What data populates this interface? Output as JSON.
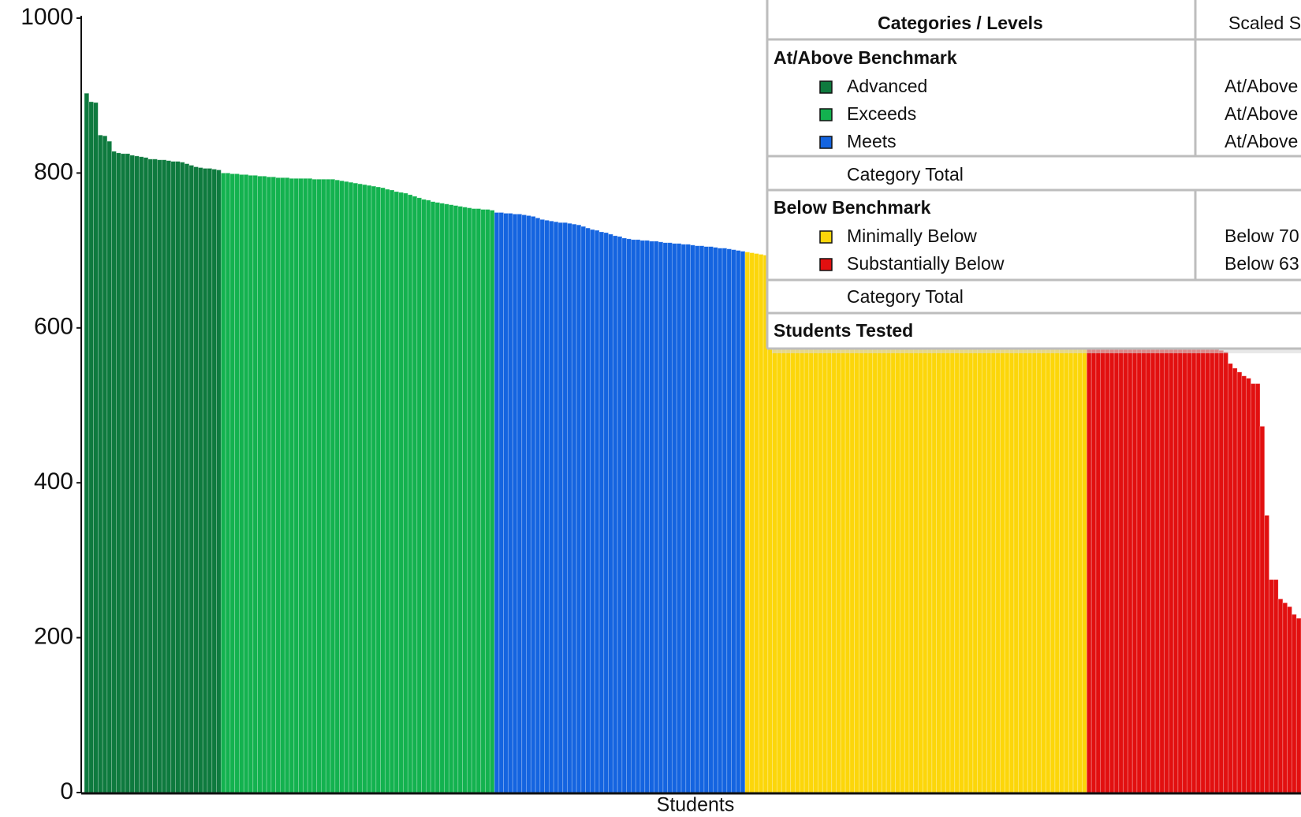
{
  "chart_data": {
    "type": "bar",
    "xlabel": "Students",
    "ylim": [
      0,
      1000
    ],
    "yticks": [
      0,
      200,
      400,
      600,
      800,
      1000
    ],
    "series": [
      {
        "name": "Advanced",
        "color": "#0e7a3e",
        "values": [
          903,
          892,
          891,
          849,
          848,
          841,
          828,
          826,
          825,
          825,
          823,
          822,
          821,
          820,
          818,
          818,
          817,
          817,
          816,
          815,
          815,
          814,
          812,
          810,
          808,
          807,
          806,
          806,
          805,
          804
        ]
      },
      {
        "name": "Exceeds",
        "color": "#13b24f",
        "values": [
          800,
          800,
          799,
          799,
          798,
          798,
          797,
          797,
          796,
          796,
          795,
          795,
          794,
          794,
          794,
          793,
          793,
          793,
          793,
          793,
          792,
          792,
          792,
          792,
          792,
          791,
          790,
          789,
          788,
          787,
          786,
          785,
          784,
          783,
          782,
          781,
          779,
          778,
          776,
          775,
          774,
          772,
          770,
          768,
          766,
          765,
          763,
          762,
          761,
          760,
          759,
          758,
          757,
          756,
          755,
          754,
          754,
          753,
          753,
          752
        ]
      },
      {
        "name": "Meets",
        "color": "#1464e0",
        "values": [
          749,
          749,
          748,
          748,
          747,
          747,
          746,
          745,
          744,
          742,
          740,
          739,
          738,
          737,
          736,
          736,
          735,
          734,
          733,
          731,
          729,
          727,
          726,
          724,
          723,
          721,
          719,
          718,
          716,
          715,
          714,
          714,
          713,
          713,
          712,
          712,
          711,
          710,
          710,
          709,
          709,
          708,
          708,
          707,
          706,
          706,
          705,
          705,
          704,
          703,
          703,
          702,
          701,
          700,
          699
        ]
      },
      {
        "name": "Minimally Below",
        "color": "#fcd60a",
        "values": [
          698,
          697,
          696,
          695,
          694,
          693,
          692,
          691,
          690,
          689,
          688,
          687,
          686,
          685,
          684,
          683,
          682,
          681,
          680,
          679,
          678,
          677,
          676,
          675,
          674,
          673,
          672,
          671,
          670,
          669,
          668,
          667,
          666,
          665,
          664,
          663,
          662,
          661,
          660,
          659,
          658,
          657,
          656,
          655,
          654,
          653,
          652,
          651,
          650,
          649,
          648,
          647,
          646,
          645,
          644,
          643,
          642,
          641,
          640,
          639,
          638,
          637,
          636,
          635,
          635,
          634,
          634,
          633,
          633,
          632,
          632,
          631,
          631,
          630,
          630
        ]
      },
      {
        "name": "Substantially Below",
        "color": "#e21010",
        "values": [
          629,
          627,
          625,
          623,
          621,
          619,
          617,
          615,
          613,
          611,
          609,
          607,
          605,
          603,
          601,
          599,
          597,
          595,
          593,
          591,
          589,
          587,
          585,
          583,
          581,
          579,
          577,
          575,
          573,
          571,
          569,
          554,
          548,
          543,
          538,
          535,
          528,
          528,
          473,
          358,
          275,
          275,
          250,
          245,
          240,
          230,
          225
        ]
      }
    ]
  },
  "table": {
    "headers": [
      "Categories / Levels",
      "Scaled S"
    ],
    "sections": [
      {
        "title": "At/Above Benchmark",
        "ranges": [
          "At/Above",
          "At/Above",
          "At/Above"
        ],
        "total": "Category Total"
      },
      {
        "title": "Below Benchmark",
        "ranges": [
          "Below 70",
          "Below 63"
        ],
        "total": "Category Total"
      }
    ],
    "footer": "Students Tested"
  }
}
